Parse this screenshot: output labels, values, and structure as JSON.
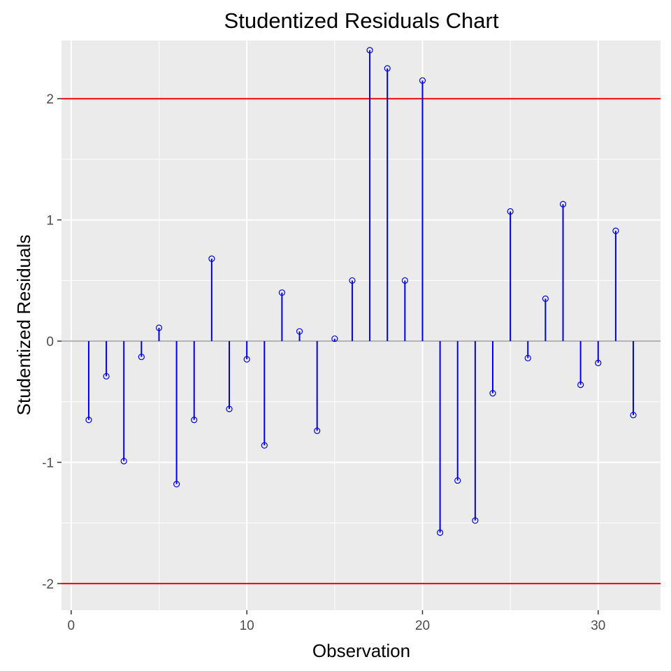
{
  "chart_data": {
    "type": "lollipop",
    "title": "Studentized Residuals Chart",
    "xlabel": "Observation",
    "ylabel": "Studentized Residuals",
    "xlim": [
      -0.55,
      33.55
    ],
    "ylim": [
      -2.22,
      2.48
    ],
    "x_ticks": [
      0,
      10,
      20,
      30
    ],
    "y_ticks": [
      -2,
      -1,
      0,
      1,
      2
    ],
    "grid": true,
    "legend": "none",
    "threshold_lines": [
      -2,
      2
    ],
    "x": [
      1,
      2,
      3,
      4,
      5,
      6,
      7,
      8,
      9,
      10,
      11,
      12,
      13,
      14,
      15,
      16,
      17,
      18,
      19,
      20,
      21,
      22,
      23,
      24,
      25,
      26,
      27,
      28,
      29,
      30,
      31,
      32
    ],
    "values": [
      -0.65,
      -0.29,
      -0.99,
      -0.13,
      0.11,
      -1.18,
      -0.65,
      0.68,
      -0.56,
      -0.15,
      -0.86,
      0.4,
      0.08,
      -0.74,
      0.02,
      0.5,
      2.4,
      2.25,
      0.5,
      2.15,
      -1.58,
      -1.15,
      -1.48,
      -0.43,
      1.07,
      -0.14,
      0.35,
      1.13,
      -0.36,
      -0.18,
      0.91,
      -0.61
    ],
    "colors": {
      "panel": "#ebebeb",
      "grid": "#ffffff",
      "stem": "#0000ee",
      "threshold": "#ee0000",
      "baseline": "#b3b3b3",
      "tick_text": "#4d4d4d",
      "tick_mark": "#333333"
    }
  }
}
